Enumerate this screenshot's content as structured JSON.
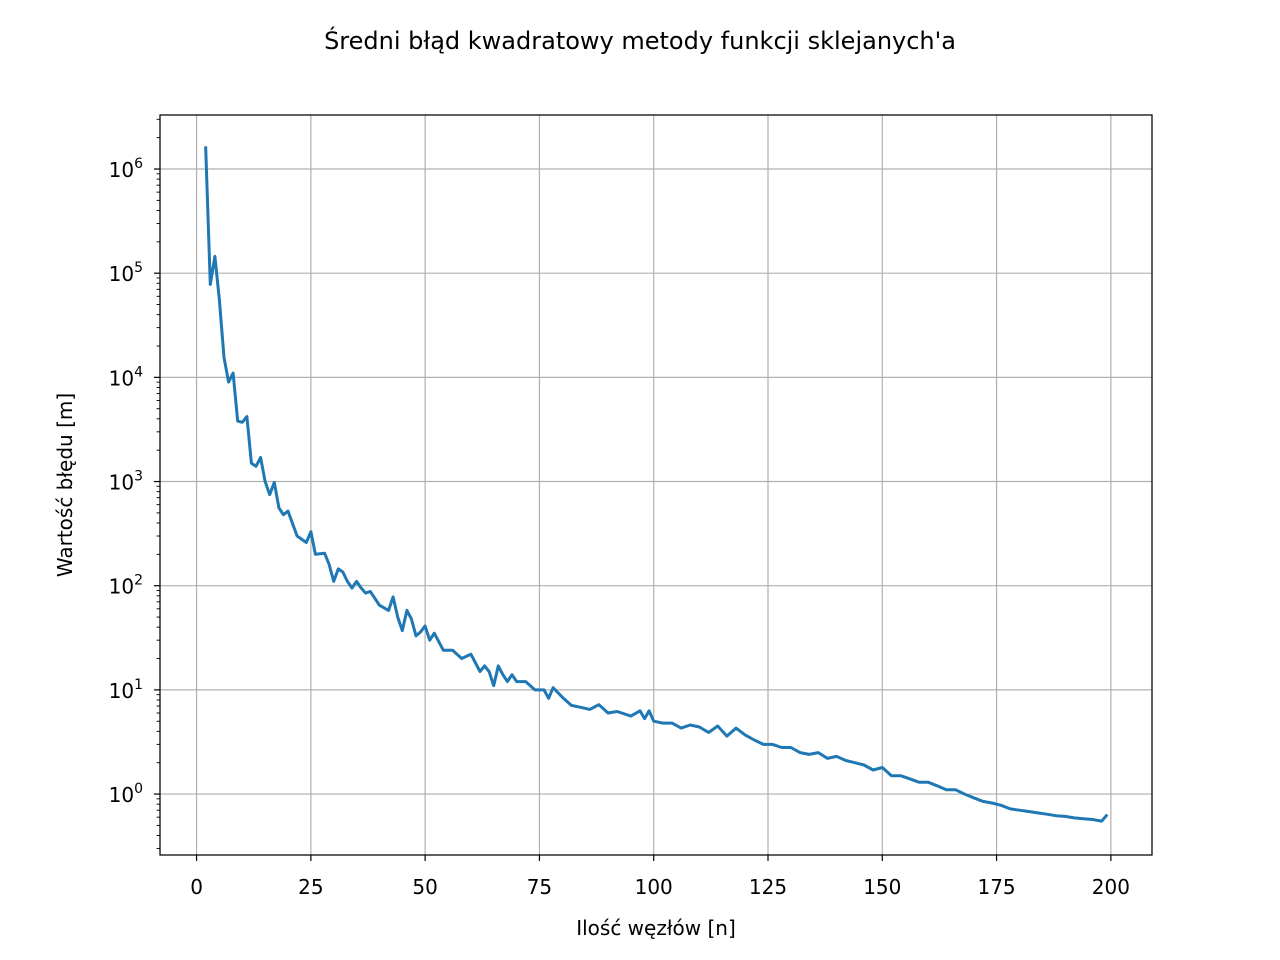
{
  "chart_data": {
    "type": "line",
    "title": "Średni błąd kwadratowy metody funkcji sklejanych'a",
    "xlabel": "Ilość węzłów [n]",
    "ylabel": "Wartość błędu [m]",
    "yscale": "log",
    "grid": true,
    "xlim": [
      -8,
      209
    ],
    "ylim": [
      0.26,
      3300000.0
    ],
    "x_ticks": [
      0,
      25,
      50,
      75,
      100,
      125,
      150,
      175,
      200
    ],
    "x_tick_labels": [
      "0",
      "25",
      "50",
      "75",
      "100",
      "125",
      "150",
      "175",
      "200"
    ],
    "y_ticks": [
      1,
      10,
      100,
      1000,
      10000,
      100000,
      1000000
    ],
    "y_tick_labels": [
      {
        "base": "10",
        "exp": "0"
      },
      {
        "base": "10",
        "exp": "1"
      },
      {
        "base": "10",
        "exp": "2"
      },
      {
        "base": "10",
        "exp": "3"
      },
      {
        "base": "10",
        "exp": "4"
      },
      {
        "base": "10",
        "exp": "5"
      },
      {
        "base": "10",
        "exp": "6"
      }
    ],
    "series": [
      {
        "color": "#1f77b4",
        "x": [
          2,
          3,
          4,
          5,
          6,
          7,
          8,
          9,
          10,
          11,
          12,
          13,
          14,
          15,
          16,
          17,
          18,
          19,
          20,
          22,
          24,
          25,
          26,
          28,
          29,
          30,
          31,
          32,
          33,
          34,
          35,
          36,
          37,
          38,
          40,
          42,
          43,
          44,
          45,
          46,
          47,
          48,
          49,
          50,
          51,
          52,
          54,
          56,
          58,
          60,
          62,
          63,
          64,
          65,
          66,
          67,
          68,
          69,
          70,
          72,
          74,
          76,
          77,
          78,
          80,
          82,
          84,
          86,
          88,
          90,
          92,
          95,
          97,
          98,
          99,
          100,
          102,
          104,
          106,
          108,
          110,
          112,
          114,
          116,
          118,
          120,
          122,
          124,
          126,
          128,
          130,
          132,
          134,
          136,
          138,
          140,
          142,
          144,
          146,
          148,
          150,
          152,
          154,
          156,
          158,
          160,
          162,
          164,
          166,
          168,
          170,
          172,
          174,
          176,
          178,
          180,
          182,
          184,
          186,
          188,
          190,
          192,
          194,
          196,
          198,
          199
        ],
        "y": [
          1600000,
          78000,
          145000,
          55000,
          15500,
          9000,
          11000,
          3800,
          3700,
          4200,
          1500,
          1400,
          1700,
          1000,
          750,
          980,
          560,
          480,
          520,
          300,
          260,
          330,
          200,
          205,
          160,
          110,
          145,
          135,
          110,
          95,
          110,
          95,
          85,
          88,
          65,
          58,
          78,
          50,
          37,
          58,
          48,
          33,
          36,
          41,
          30,
          35,
          24,
          24,
          20,
          22,
          15,
          17,
          15,
          11,
          17,
          14,
          12,
          14,
          12,
          12,
          10,
          10,
          8.3,
          10.5,
          8.5,
          7.1,
          6.8,
          6.5,
          7.2,
          6.0,
          6.2,
          5.6,
          6.3,
          5.3,
          6.3,
          5.0,
          4.8,
          4.8,
          4.3,
          4.6,
          4.4,
          3.9,
          4.5,
          3.6,
          4.3,
          3.7,
          3.3,
          3.0,
          3.0,
          2.8,
          2.8,
          2.5,
          2.4,
          2.5,
          2.2,
          2.3,
          2.1,
          2.0,
          1.9,
          1.7,
          1.8,
          1.5,
          1.5,
          1.4,
          1.3,
          1.3,
          1.2,
          1.1,
          1.1,
          1.0,
          0.92,
          0.85,
          0.82,
          0.78,
          0.72,
          0.7,
          0.68,
          0.66,
          0.64,
          0.62,
          0.61,
          0.59,
          0.58,
          0.57,
          0.55,
          0.62
        ]
      }
    ]
  }
}
